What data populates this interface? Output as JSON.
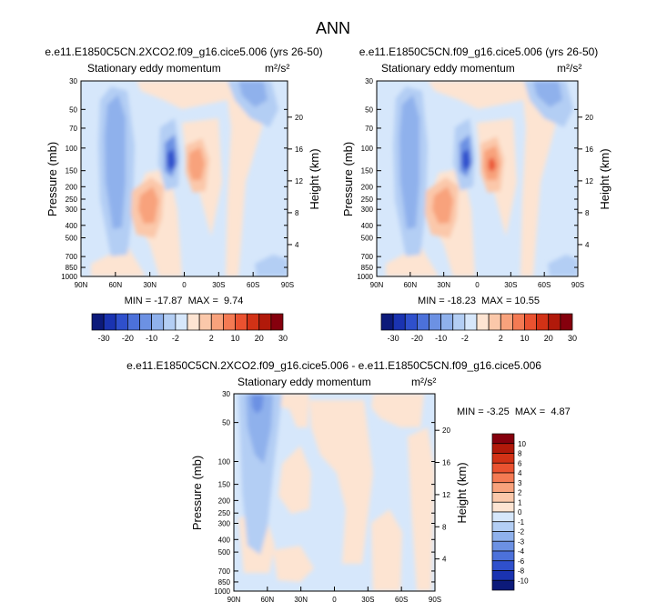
{
  "figure": {
    "title": "ANN"
  },
  "colors": {
    "pos": [
      "#ffffff",
      "#fde4d2",
      "#fbc8aa",
      "#f8a27c",
      "#f47a53",
      "#ea5230",
      "#d23216",
      "#b1190a",
      "#85000d"
    ],
    "neg": [
      "#ffffff",
      "#d6e7fb",
      "#b3cef4",
      "#8fb1ec",
      "#6c91e3",
      "#4c71da",
      "#2f50cc",
      "#1a33b1",
      "#0c1a7a"
    ]
  },
  "chart_data": [
    {
      "type": "contour",
      "title": "e.e11.E1850C5CN.2XCO2.f09_g16.cice5.006 (yrs 26-50)",
      "subtitle": "Stationary eddy momentum",
      "units": "m²/s²",
      "ylabel": "Pressure (mb)",
      "ylabel_right": "Height (km)",
      "x_ticks": [
        "90N",
        "60N",
        "30N",
        "0",
        "30S",
        "60S",
        "90S"
      ],
      "y_ticks": [
        "30",
        "50",
        "70",
        "100",
        "150",
        "200",
        "250",
        "300",
        "400",
        "500",
        "700",
        "850",
        "1000"
      ],
      "height_ticks": [
        "4",
        "8",
        "12",
        "16",
        "20"
      ],
      "stats": "MIN = -17.87  MAX =  9.74",
      "min": -17.87,
      "max": 9.74
    },
    {
      "type": "contour",
      "title": "e.e11.E1850C5CN.f09_g16.cice5.006 (yrs 26-50)",
      "subtitle": "Stationary eddy momentum",
      "units": "m²/s²",
      "ylabel": "Pressure (mb)",
      "ylabel_right": "Height (km)",
      "x_ticks": [
        "90N",
        "60N",
        "30N",
        "0",
        "30S",
        "60S",
        "90S"
      ],
      "y_ticks": [
        "30",
        "50",
        "70",
        "100",
        "150",
        "200",
        "250",
        "300",
        "400",
        "500",
        "700",
        "850",
        "1000"
      ],
      "height_ticks": [
        "4",
        "8",
        "12",
        "16",
        "20"
      ],
      "stats": "MIN = -18.23  MAX = 10.55",
      "min": -18.23,
      "max": 10.55
    },
    {
      "type": "contour",
      "title": "e.e11.E1850C5CN.2XCO2.f09_g16.cice5.006 - e.e11.E1850C5CN.f09_g16.cice5.006",
      "subtitle": "Stationary eddy momentum",
      "units": "m²/s²",
      "ylabel": "Pressure (mb)",
      "ylabel_right": "Height (km)",
      "x_ticks": [
        "90N",
        "60N",
        "30N",
        "0",
        "30S",
        "60S",
        "90S"
      ],
      "y_ticks": [
        "30",
        "50",
        "100",
        "150",
        "200",
        "250",
        "300",
        "400",
        "500",
        "700",
        "850",
        "1000"
      ],
      "height_ticks": [
        "4",
        "8",
        "12",
        "16",
        "20"
      ],
      "stats": "MIN = -3.25  MAX =  4.87",
      "min": -3.25,
      "max": 4.87
    }
  ],
  "colorbar_main": {
    "labels": [
      "-30",
      "-20",
      "-10",
      "-2",
      "2",
      "10",
      "20",
      "30"
    ]
  },
  "colorbar_diff": {
    "labels": [
      "10",
      "8",
      "6",
      "4",
      "3",
      "2",
      "1",
      "0",
      "-1",
      "-2",
      "-3",
      "-4",
      "-6",
      "-8",
      "-10"
    ]
  }
}
